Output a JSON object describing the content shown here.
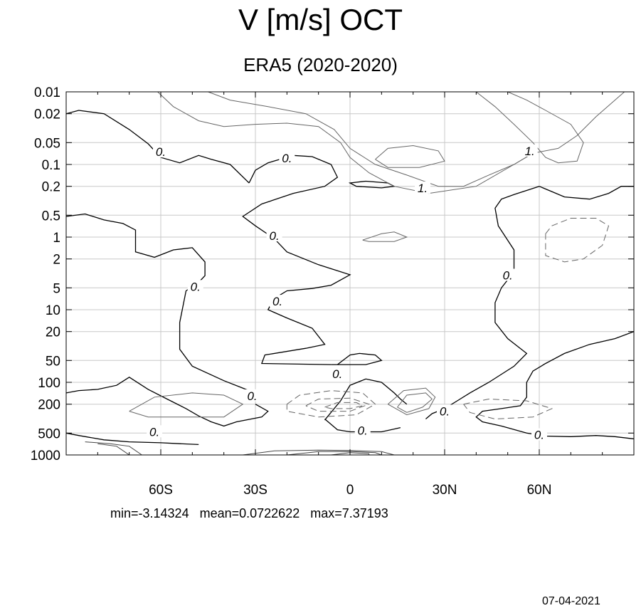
{
  "chart_data": {
    "type": "contour",
    "title": "V [m/s] OCT",
    "subtitle": "ERA5 (2020-2020)",
    "xlabel": "",
    "ylabel": "",
    "xlim": [
      -90,
      90
    ],
    "ylim": [
      1000,
      0.01
    ],
    "y_scale": "log",
    "grid": true,
    "x_ticks": [
      {
        "value": -60,
        "label": "60S"
      },
      {
        "value": -30,
        "label": "30S"
      },
      {
        "value": 0,
        "label": "0"
      },
      {
        "value": 30,
        "label": "30N"
      },
      {
        "value": 60,
        "label": "60N"
      }
    ],
    "y_ticks": [
      {
        "value": 0.01,
        "label": "0.01"
      },
      {
        "value": 0.02,
        "label": "0.02"
      },
      {
        "value": 0.05,
        "label": "0.05"
      },
      {
        "value": 0.1,
        "label": "0.1"
      },
      {
        "value": 0.2,
        "label": "0.2"
      },
      {
        "value": 0.5,
        "label": "0.5"
      },
      {
        "value": 1,
        "label": "1"
      },
      {
        "value": 2,
        "label": "2"
      },
      {
        "value": 5,
        "label": "5"
      },
      {
        "value": 10,
        "label": "10"
      },
      {
        "value": 20,
        "label": "20"
      },
      {
        "value": 50,
        "label": "50"
      },
      {
        "value": 100,
        "label": "100"
      },
      {
        "value": 200,
        "label": "200"
      },
      {
        "value": 500,
        "label": "500"
      },
      {
        "value": 1000,
        "label": "1000"
      }
    ],
    "contour_labels": [
      {
        "text": "0.",
        "x": -60,
        "y": 0.07
      },
      {
        "text": "0.",
        "x": -20,
        "y": 0.085
      },
      {
        "text": "0.",
        "x": -24,
        "y": 1
      },
      {
        "text": "0.",
        "x": -49,
        "y": 5
      },
      {
        "text": "0.",
        "x": -23,
        "y": 8
      },
      {
        "text": "0.",
        "x": -31,
        "y": 160
      },
      {
        "text": "0.",
        "x": -62,
        "y": 500
      },
      {
        "text": "0.",
        "x": -4,
        "y": 80
      },
      {
        "text": "0.",
        "x": 4,
        "y": 480
      },
      {
        "text": "0.",
        "x": 30,
        "y": 260
      },
      {
        "text": "0.",
        "x": 50,
        "y": 3.5
      },
      {
        "text": "0.",
        "x": 60,
        "y": 550
      },
      {
        "text": "1.",
        "x": 23,
        "y": 0.22
      },
      {
        "text": "1.",
        "x": 57,
        "y": 0.068
      }
    ],
    "zero_contours": [
      [
        [
          -90,
          0.02
        ],
        [
          -86,
          0.018
        ],
        [
          -78,
          0.02
        ],
        [
          -70,
          0.033
        ],
        [
          -64,
          0.052
        ],
        [
          -60,
          0.08
        ],
        [
          -54,
          0.095
        ],
        [
          -48,
          0.075
        ],
        [
          -44,
          0.085
        ],
        [
          -38,
          0.1
        ],
        [
          -32,
          0.18
        ]
      ],
      [
        [
          -32,
          0.18
        ],
        [
          -30,
          0.12
        ],
        [
          -26,
          0.095
        ],
        [
          -18,
          0.075
        ],
        [
          -12,
          0.078
        ],
        [
          -6,
          0.1
        ],
        [
          -4,
          0.15
        ],
        [
          -8,
          0.2
        ],
        [
          -18,
          0.25
        ],
        [
          -28,
          0.35
        ],
        [
          -34,
          0.52
        ],
        [
          -30,
          0.7
        ],
        [
          -24,
          1.05
        ],
        [
          -20,
          1.6
        ],
        [
          -10,
          2.4
        ],
        [
          0,
          3.3
        ],
        [
          -6,
          4.6
        ],
        [
          -12,
          5.1
        ],
        [
          -20,
          5.5
        ],
        [
          -24,
          7
        ],
        [
          -26,
          10
        ],
        [
          -20,
          13
        ],
        [
          -12,
          18
        ],
        [
          -8,
          30
        ],
        [
          -14,
          34
        ],
        [
          -27,
          42
        ],
        [
          -28,
          55
        ],
        [
          -6,
          57
        ]
      ],
      [
        [
          -6,
          57
        ],
        [
          5,
          57
        ],
        [
          10,
          50
        ],
        [
          8,
          42
        ],
        [
          3,
          40
        ],
        [
          0,
          42
        ],
        [
          -4,
          57
        ]
      ],
      [
        [
          -90,
          0.52
        ],
        [
          -84,
          0.48
        ],
        [
          -78,
          0.58
        ],
        [
          -72,
          0.65
        ],
        [
          -68,
          0.8
        ],
        [
          -68,
          1.6
        ],
        [
          -62,
          1.9
        ],
        [
          -56,
          1.5
        ],
        [
          -50,
          1.4
        ],
        [
          -46,
          2.2
        ],
        [
          -46,
          3.4
        ],
        [
          -48,
          4.2
        ],
        [
          -52,
          5.5
        ],
        [
          -54,
          15
        ],
        [
          -54,
          35
        ],
        [
          -50,
          60
        ],
        [
          -40,
          95
        ],
        [
          -32,
          130
        ],
        [
          -30,
          160
        ]
      ],
      [
        [
          -90,
          140
        ],
        [
          -86,
          130
        ],
        [
          -80,
          125
        ],
        [
          -74,
          110
        ],
        [
          -70,
          85
        ],
        [
          -64,
          125
        ],
        [
          -58,
          170
        ],
        [
          -52,
          230
        ],
        [
          -48,
          290
        ],
        [
          -44,
          350
        ],
        [
          -40,
          400
        ],
        [
          -36,
          350
        ],
        [
          -28,
          300
        ],
        [
          -26,
          250
        ],
        [
          -30,
          200
        ]
      ],
      [
        [
          -90,
          500
        ],
        [
          -86,
          540
        ],
        [
          -78,
          620
        ],
        [
          -74,
          640
        ],
        [
          -70,
          660
        ],
        [
          -60,
          680
        ],
        [
          -54,
          700
        ],
        [
          -48,
          720
        ]
      ],
      [
        [
          -8,
          320
        ],
        [
          -4,
          450
        ],
        [
          0,
          480
        ],
        [
          10,
          480
        ],
        [
          14,
          440
        ],
        [
          16,
          420
        ]
      ],
      [
        [
          -8,
          330
        ],
        [
          -3,
          180
        ],
        [
          0,
          110
        ],
        [
          5,
          90
        ],
        [
          10,
          100
        ],
        [
          14,
          140
        ],
        [
          16,
          170
        ],
        [
          18,
          200
        ]
      ],
      [
        [
          60,
          0.2
        ],
        [
          52,
          0.26
        ],
        [
          48,
          0.3
        ],
        [
          46,
          0.4
        ],
        [
          47,
          0.7
        ],
        [
          52,
          1.5
        ],
        [
          52,
          3
        ],
        [
          48,
          5
        ],
        [
          46,
          8
        ],
        [
          46,
          15
        ],
        [
          50,
          25
        ],
        [
          56,
          40
        ],
        [
          52,
          60
        ],
        [
          44,
          100
        ],
        [
          38,
          140
        ],
        [
          34,
          180
        ],
        [
          30,
          230
        ],
        [
          26,
          270
        ],
        [
          24,
          320
        ]
      ],
      [
        [
          60,
          0.2
        ],
        [
          68,
          0.28
        ],
        [
          76,
          0.3
        ],
        [
          82,
          0.25
        ],
        [
          86,
          0.2
        ],
        [
          90,
          0.2
        ]
      ],
      [
        [
          90,
          20
        ],
        [
          84,
          25
        ],
        [
          76,
          30
        ],
        [
          68,
          40
        ],
        [
          62,
          55
        ],
        [
          58,
          70
        ],
        [
          56,
          100
        ],
        [
          56,
          160
        ],
        [
          54,
          210
        ],
        [
          48,
          230
        ],
        [
          42,
          250
        ],
        [
          40,
          300
        ],
        [
          42,
          350
        ],
        [
          48,
          400
        ],
        [
          56,
          500
        ],
        [
          62,
          550
        ],
        [
          70,
          560
        ],
        [
          78,
          540
        ],
        [
          84,
          560
        ],
        [
          90,
          600
        ]
      ],
      [
        [
          5,
          0.17
        ],
        [
          12,
          0.18
        ],
        [
          14,
          0.2
        ],
        [
          10,
          0.21
        ],
        [
          2,
          0.2
        ],
        [
          0,
          0.18
        ],
        [
          5,
          0.17
        ]
      ]
    ],
    "positive_contours": [
      [
        [
          -61,
          0.01
        ],
        [
          -56,
          0.016
        ],
        [
          -48,
          0.025
        ],
        [
          -40,
          0.03
        ],
        [
          -30,
          0.028
        ],
        [
          -20,
          0.027
        ],
        [
          -10,
          0.03
        ],
        [
          -3,
          0.05
        ],
        [
          0,
          0.08
        ],
        [
          6,
          0.13
        ],
        [
          14,
          0.2
        ],
        [
          25,
          0.25
        ],
        [
          40,
          0.2
        ],
        [
          52,
          0.1
        ],
        [
          58,
          0.07
        ],
        [
          66,
          0.06
        ],
        [
          72,
          0.04
        ],
        [
          78,
          0.022
        ],
        [
          84,
          0.013
        ],
        [
          87,
          0.01
        ]
      ],
      [
        [
          -45,
          0.01
        ],
        [
          -38,
          0.013
        ],
        [
          -26,
          0.016
        ],
        [
          -14,
          0.02
        ],
        [
          -5,
          0.033
        ],
        [
          0,
          0.06
        ],
        [
          8,
          0.1
        ],
        [
          18,
          0.14
        ],
        [
          28,
          0.2
        ],
        [
          36,
          0.2
        ],
        [
          44,
          0.14
        ],
        [
          52,
          0.1
        ],
        [
          58,
          0.07
        ]
      ],
      [
        [
          40,
          0.01
        ],
        [
          46,
          0.016
        ],
        [
          52,
          0.028
        ],
        [
          58,
          0.05
        ],
        [
          62,
          0.08
        ],
        [
          66,
          0.095
        ],
        [
          72,
          0.09
        ],
        [
          74,
          0.05
        ],
        [
          70,
          0.028
        ],
        [
          62,
          0.018
        ],
        [
          56,
          0.013
        ],
        [
          50,
          0.01
        ]
      ],
      [
        [
          8,
          0.085
        ],
        [
          12,
          0.06
        ],
        [
          20,
          0.055
        ],
        [
          28,
          0.065
        ],
        [
          30,
          0.09
        ],
        [
          22,
          0.11
        ],
        [
          12,
          0.11
        ],
        [
          8,
          0.085
        ]
      ],
      [
        [
          4,
          1.1
        ],
        [
          10,
          0.9
        ],
        [
          14,
          0.85
        ],
        [
          18,
          1.0
        ],
        [
          14,
          1.15
        ],
        [
          6,
          1.15
        ],
        [
          4,
          1.1
        ]
      ],
      [
        [
          -70,
          250
        ],
        [
          -62,
          160
        ],
        [
          -50,
          140
        ],
        [
          -40,
          150
        ],
        [
          -34,
          200
        ],
        [
          -40,
          300
        ],
        [
          -52,
          300
        ],
        [
          -64,
          300
        ],
        [
          -70,
          250
        ]
      ],
      [
        [
          15,
          220
        ],
        [
          18,
          150
        ],
        [
          24,
          140
        ],
        [
          26,
          170
        ],
        [
          23,
          220
        ],
        [
          18,
          260
        ],
        [
          15,
          220
        ]
      ],
      [
        [
          12,
          200
        ],
        [
          17,
          130
        ],
        [
          24,
          120
        ],
        [
          27,
          160
        ],
        [
          25,
          230
        ],
        [
          18,
          280
        ],
        [
          12,
          200
        ]
      ]
    ],
    "negative_contours": [
      [
        [
          62,
          0.9
        ],
        [
          64,
          0.7
        ],
        [
          70,
          0.55
        ],
        [
          78,
          0.55
        ],
        [
          82,
          0.7
        ],
        [
          80,
          1.3
        ],
        [
          74,
          2
        ],
        [
          68,
          2.2
        ],
        [
          62,
          1.8
        ],
        [
          62,
          1.2
        ],
        [
          62,
          0.9
        ]
      ],
      [
        [
          -20,
          200
        ],
        [
          -16,
          150
        ],
        [
          -6,
          130
        ],
        [
          4,
          140
        ],
        [
          8,
          200
        ],
        [
          2,
          280
        ],
        [
          -10,
          300
        ],
        [
          -20,
          250
        ],
        [
          -20,
          200
        ]
      ],
      [
        [
          -14,
          210
        ],
        [
          -10,
          170
        ],
        [
          0,
          165
        ],
        [
          6,
          200
        ],
        [
          0,
          250
        ],
        [
          -10,
          250
        ],
        [
          -14,
          210
        ]
      ],
      [
        [
          -8,
          220
        ],
        [
          -4,
          190
        ],
        [
          2,
          190
        ],
        [
          4,
          210
        ],
        [
          0,
          230
        ],
        [
          -6,
          230
        ],
        [
          -8,
          220
        ]
      ],
      [
        [
          36,
          200
        ],
        [
          44,
          170
        ],
        [
          56,
          180
        ],
        [
          64,
          230
        ],
        [
          58,
          300
        ],
        [
          46,
          320
        ],
        [
          38,
          260
        ],
        [
          36,
          200
        ]
      ]
    ],
    "surface_contours": [
      [
        [
          -34,
          1000
        ],
        [
          -24,
          880
        ],
        [
          -10,
          860
        ],
        [
          0,
          870
        ],
        [
          10,
          900
        ],
        [
          14,
          1000
        ]
      ],
      [
        [
          -20,
          1000
        ],
        [
          -10,
          900
        ],
        [
          0,
          895
        ],
        [
          8,
          930
        ],
        [
          10,
          1000
        ]
      ],
      [
        [
          -6,
          1000
        ],
        [
          0,
          930
        ],
        [
          6,
          960
        ],
        [
          6,
          1000
        ]
      ],
      [
        [
          -84,
          660
        ],
        [
          -76,
          700
        ],
        [
          -70,
          760
        ],
        [
          -66,
          1000
        ]
      ],
      [
        [
          -80,
          700
        ],
        [
          -74,
          760
        ],
        [
          -70,
          1000
        ]
      ]
    ],
    "stats": {
      "min": "min=-3.14324",
      "mean": "mean=0.0722622",
      "max": "max=7.37193"
    },
    "footer_date": "07-04-2021"
  }
}
